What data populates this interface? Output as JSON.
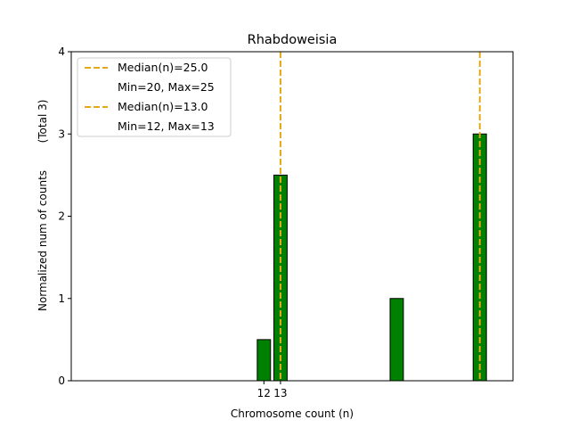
{
  "chart_data": {
    "type": "bar",
    "title": "Rhabdoweisia",
    "xlabel": "Chromosome count (n)",
    "ylabel": "Normalized num of counts",
    "ylabel_note": "(Total 3)",
    "ylim": [
      0,
      4
    ],
    "xlim": [
      0.4,
      27.0
    ],
    "yticks": [
      0,
      1,
      2,
      3,
      4
    ],
    "xticks": [
      {
        "value": 12,
        "label": "12"
      },
      {
        "value": 13,
        "label": "13"
      }
    ],
    "bars": [
      {
        "x": 12,
        "value": 0.5
      },
      {
        "x": 13,
        "value": 2.5
      },
      {
        "x": 20,
        "value": 1.0
      },
      {
        "x": 25,
        "value": 3.0
      }
    ],
    "bar_width": 0.8,
    "medians": [
      {
        "x": 25.0,
        "label": "Median(n)=25.0",
        "range_label": "Min=20, Max=25"
      },
      {
        "x": 13.0,
        "label": "Median(n)=13.0",
        "range_label": "Min=12, Max=13"
      }
    ],
    "colors": {
      "bar_fill": "#008000",
      "bar_edge": "#000000",
      "median_line": "#E6A817"
    },
    "legend_position": "upper-left"
  }
}
